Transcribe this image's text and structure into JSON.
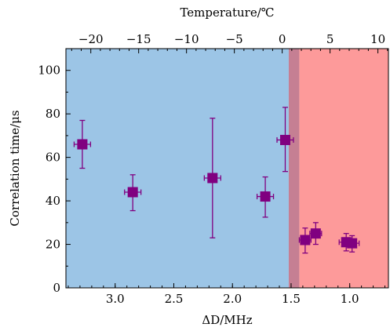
{
  "chart_data": {
    "type": "scatter",
    "xlabel": "ΔD/MHz",
    "ylabel": "Correlation time/μs",
    "top_xlabel": "Temperature/℃",
    "xlim": [
      3.42,
      0.67
    ],
    "ylim": [
      0,
      110
    ],
    "top_xlim": [
      -22.6,
      11.1
    ],
    "x_reversed": true,
    "x_ticks": [
      3.0,
      2.5,
      2.0,
      1.5,
      1.0
    ],
    "x_tick_labels": [
      "3.0",
      "2.5",
      "2.0",
      "1.5",
      "1.0"
    ],
    "y_ticks": [
      0,
      20,
      40,
      60,
      80,
      100
    ],
    "y_tick_labels": [
      "0",
      "20",
      "40",
      "60",
      "80",
      "100"
    ],
    "top_ticks": [
      -20,
      -15,
      -10,
      -5,
      0,
      5,
      10
    ],
    "top_tick_labels": [
      "−20",
      "−15",
      "−10",
      "−5",
      "0",
      "5",
      "10"
    ],
    "regions": [
      {
        "x_from": 3.42,
        "x_to": 1.52,
        "color": "#9cc5e6"
      },
      {
        "x_from": 1.43,
        "x_to": 0.67,
        "color": "#fd9a9a"
      },
      {
        "x_from": 1.52,
        "x_to": 1.43,
        "color": "#c57f93"
      }
    ],
    "marker_color": "#800080",
    "points": [
      {
        "x": 3.28,
        "y": 66,
        "y_low": 55,
        "y_high": 77,
        "x_err": 0.07
      },
      {
        "x": 2.85,
        "y": 44,
        "y_low": 35.5,
        "y_high": 52,
        "x_err": 0.07
      },
      {
        "x": 2.17,
        "y": 50.5,
        "y_low": 23,
        "y_high": 78,
        "x_err": 0.07
      },
      {
        "x": 1.72,
        "y": 42,
        "y_low": 32.5,
        "y_high": 51,
        "x_err": 0.07
      },
      {
        "x": 1.55,
        "y": 68,
        "y_low": 53.5,
        "y_high": 83,
        "x_err": 0.07
      },
      {
        "x": 1.38,
        "y": 22,
        "y_low": 16,
        "y_high": 27.5,
        "x_err": 0.05
      },
      {
        "x": 1.29,
        "y": 25,
        "y_low": 20,
        "y_high": 30,
        "x_err": 0.05
      },
      {
        "x": 1.03,
        "y": 21,
        "y_low": 17,
        "y_high": 25,
        "x_err": 0.06
      },
      {
        "x": 0.98,
        "y": 20.5,
        "y_low": 16.5,
        "y_high": 24,
        "x_err": 0.06
      }
    ]
  }
}
